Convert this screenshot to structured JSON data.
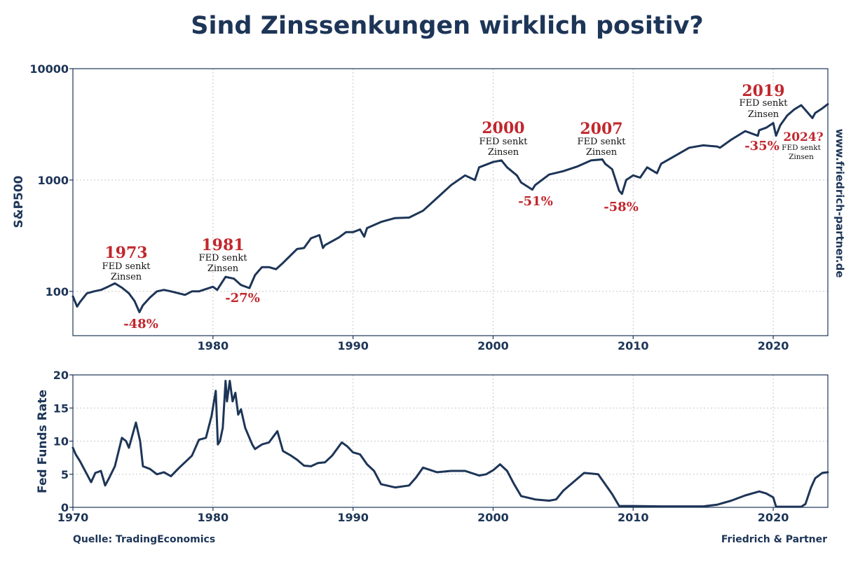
{
  "chart_data": {
    "title": "Sind Zinssenkungen wirklich positiv?",
    "source": "Quelle: TradingEconomics",
    "footer_right": "Friedrich & Partner",
    "website": "www.friedrich-partner.de",
    "colors": {
      "series": "#1d3557",
      "annotation": "#c1272d",
      "text": "#111111",
      "grid": "#c7c7c7"
    },
    "panels": [
      {
        "id": "sp500",
        "type": "line",
        "ylabel": "S&P500",
        "yscale": "log",
        "xlim": [
          1970,
          2023.9
        ],
        "ylim": [
          40,
          10000
        ],
        "yticks": [
          100,
          1000,
          10000
        ],
        "ytick_labels": [
          "100",
          "1000",
          "10000"
        ],
        "xticks": [
          1980,
          1990,
          2000,
          2010,
          2020
        ],
        "xtick_labels": [
          "1980",
          "1990",
          "2000",
          "2010",
          "2020"
        ],
        "grid": true,
        "x": [
          1970,
          1970.3,
          1970.5,
          1971,
          1971.5,
          1972,
          1972.5,
          1973,
          1973.5,
          1974,
          1974.4,
          1974.75,
          1975,
          1975.5,
          1976,
          1976.5,
          1977,
          1978,
          1978.5,
          1979,
          1980,
          1980.3,
          1980.9,
          1981.5,
          1982,
          1982.6,
          1983,
          1983.5,
          1984,
          1984.5,
          1985,
          1986,
          1986.5,
          1987,
          1987.6,
          1987.85,
          1988,
          1989,
          1989.5,
          1990,
          1990.5,
          1990.8,
          1991,
          1992,
          1993,
          1994,
          1995,
          1996,
          1997,
          1998,
          1998.7,
          1999,
          2000,
          2000.6,
          2001,
          2001.7,
          2002,
          2002.8,
          2003,
          2004,
          2005,
          2006,
          2007,
          2007.8,
          2008,
          2008.5,
          2009,
          2009.2,
          2009.5,
          2010,
          2010.5,
          2011,
          2011.7,
          2012,
          2013,
          2014,
          2015,
          2016,
          2016.2,
          2017,
          2018,
          2018.9,
          2019,
          2019.5,
          2020,
          2020.2,
          2020.5,
          2021,
          2021.5,
          2022,
          2022.8,
          2023,
          2023.5,
          2023.9
        ],
        "values": [
          90,
          73,
          80,
          96,
          100,
          103,
          110,
          118,
          108,
          96,
          82,
          65,
          75,
          88,
          100,
          103,
          100,
          93,
          100,
          100,
          110,
          103,
          135,
          130,
          114,
          107,
          140,
          165,
          165,
          158,
          180,
          240,
          245,
          300,
          320,
          245,
          260,
          305,
          340,
          340,
          360,
          310,
          370,
          420,
          455,
          460,
          530,
          690,
          900,
          1100,
          1000,
          1300,
          1450,
          1500,
          1300,
          1100,
          950,
          820,
          900,
          1120,
          1200,
          1320,
          1500,
          1530,
          1400,
          1250,
          800,
          750,
          1000,
          1100,
          1050,
          1300,
          1150,
          1400,
          1650,
          1950,
          2050,
          2000,
          1950,
          2300,
          2750,
          2500,
          2800,
          2950,
          3250,
          2500,
          3100,
          3800,
          4300,
          4700,
          3600,
          4000,
          4400,
          4800
        ],
        "annotations": [
          {
            "year": "1973",
            "text": [
              "FED senkt",
              "Zinsen"
            ],
            "drop": "-48%"
          },
          {
            "year": "1981",
            "text": [
              "FED senkt",
              "Zinsen"
            ],
            "drop": "-27%"
          },
          {
            "year": "2000",
            "text": [
              "FED senkt",
              "Zinsen"
            ],
            "drop": "-51%"
          },
          {
            "year": "2007",
            "text": [
              "FED senkt",
              "Zinsen"
            ],
            "drop": "-58%"
          },
          {
            "year": "2019",
            "text": [
              "FED senkt",
              "Zinsen"
            ],
            "drop": "-35%"
          },
          {
            "year": "2024?",
            "text": [
              "FED senkt",
              "Zinsen"
            ],
            "drop": ""
          }
        ]
      },
      {
        "id": "fedfunds",
        "type": "line",
        "ylabel": "Fed Funds Rate",
        "yscale": "linear",
        "xlim": [
          1970,
          2023.9
        ],
        "ylim": [
          0,
          20
        ],
        "yticks": [
          0,
          5,
          10,
          15,
          20
        ],
        "ytick_labels": [
          "0",
          "5",
          "10",
          "15",
          "20"
        ],
        "xticks": [
          1970,
          1980,
          1990,
          2000,
          2010,
          2020
        ],
        "xtick_labels": [
          "1970",
          "1980",
          "1990",
          "2000",
          "2010",
          "2020"
        ],
        "grid": true,
        "x": [
          1970,
          1970.2,
          1970.5,
          1971,
          1971.3,
          1971.6,
          1972,
          1972.3,
          1972.6,
          1973,
          1973.5,
          1973.8,
          1974,
          1974.5,
          1974.8,
          1975,
          1975.5,
          1976,
          1976.5,
          1977,
          1977.5,
          1978,
          1978.5,
          1979,
          1979.5,
          1979.9,
          1980.2,
          1980.35,
          1980.5,
          1980.7,
          1980.9,
          1981,
          1981.2,
          1981.4,
          1981.6,
          1981.8,
          1982,
          1982.3,
          1982.6,
          1982.8,
          1983,
          1983.5,
          1984,
          1984.6,
          1985,
          1985.5,
          1986,
          1986.5,
          1987,
          1987.5,
          1988,
          1988.5,
          1989.2,
          1989.6,
          1990,
          1990.5,
          1991,
          1991.5,
          1992,
          1993,
          1994,
          1994.5,
          1995,
          1996,
          1997,
          1998,
          1999,
          1999.5,
          2000,
          2000.5,
          2001,
          2001.5,
          2002,
          2003,
          2004,
          2004.5,
          2005,
          2006,
          2006.5,
          2007.5,
          2008,
          2008.5,
          2009,
          2010,
          2012,
          2015,
          2016,
          2017,
          2018,
          2019,
          2019.5,
          2020,
          2020.2,
          2021,
          2022,
          2022.3,
          2022.7,
          2023,
          2023.5,
          2023.9
        ],
        "values": [
          9,
          8,
          7,
          5,
          3.8,
          5.2,
          5.5,
          3.3,
          4.5,
          6.2,
          10.5,
          10,
          9,
          12.8,
          10,
          6.2,
          5.8,
          5.0,
          5.3,
          4.7,
          5.8,
          6.8,
          7.8,
          10.2,
          10.5,
          13.8,
          17.6,
          9.5,
          10.0,
          12.0,
          19.1,
          16,
          19.1,
          16,
          17.3,
          14,
          14.8,
          12,
          10.5,
          9.5,
          8.8,
          9.5,
          9.8,
          11.5,
          8.5,
          7.9,
          7.2,
          6.3,
          6.2,
          6.7,
          6.8,
          7.8,
          9.8,
          9.2,
          8.3,
          8.0,
          6.5,
          5.5,
          3.5,
          3.0,
          3.3,
          4.5,
          6.0,
          5.3,
          5.5,
          5.5,
          4.8,
          5.0,
          5.6,
          6.5,
          5.5,
          3.5,
          1.7,
          1.2,
          1.0,
          1.2,
          2.5,
          4.3,
          5.2,
          5.0,
          3.5,
          2.0,
          0.2,
          0.2,
          0.15,
          0.15,
          0.4,
          1.0,
          1.8,
          2.4,
          2.1,
          1.5,
          0.1,
          0.1,
          0.1,
          0.5,
          3.0,
          4.4,
          5.2,
          5.3
        ]
      }
    ]
  }
}
